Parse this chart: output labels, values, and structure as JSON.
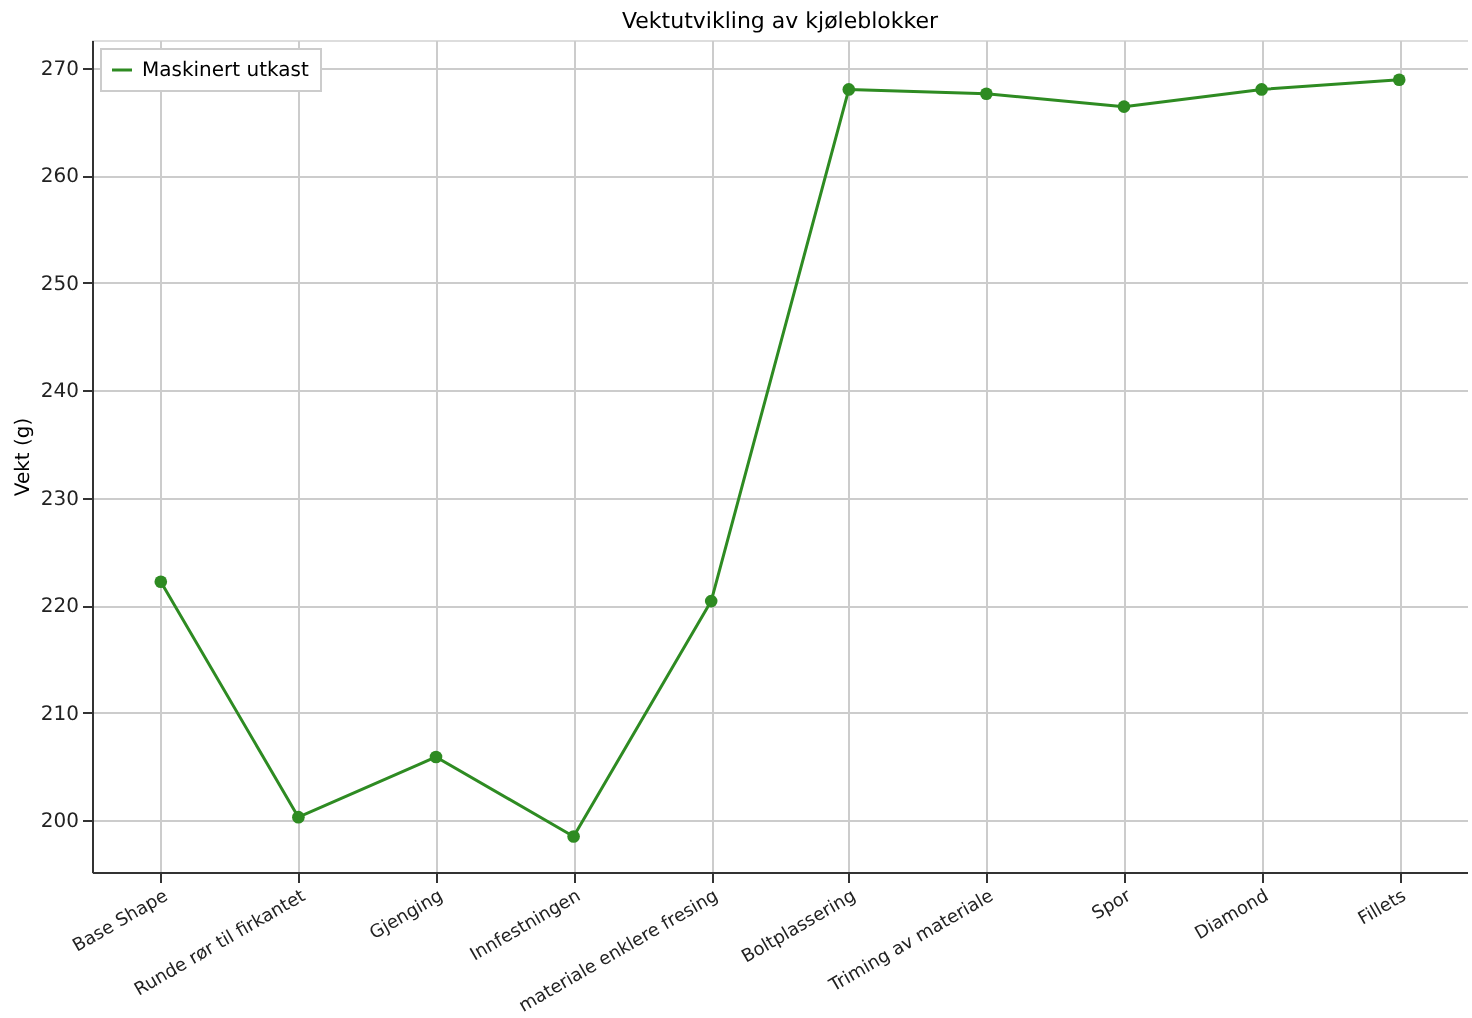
{
  "chart_data": {
    "type": "line",
    "title": "Vektutvikling av kjøleblokker",
    "ylabel": "Vekt (g)",
    "categories": [
      "Base Shape",
      "Runde rør til firkantet",
      "Gjenging",
      "Innfestningen",
      "materiale enklere fresing",
      "Boltplassering",
      "Triming av materiale",
      "Spor",
      "Diamond",
      "Fillets"
    ],
    "series": [
      {
        "name": "Maskinert utkast",
        "color": "#2e8b22",
        "values": [
          222.2,
          200.3,
          205.9,
          198.5,
          220.4,
          268.0,
          267.6,
          266.4,
          268.0,
          268.9
        ]
      }
    ],
    "ylim": [
      195.2,
      272.6
    ],
    "yticks": [
      200,
      210,
      220,
      230,
      240,
      250,
      260,
      270
    ],
    "grid": true,
    "legend": "top left",
    "marker": "circle",
    "line_style": "solid"
  }
}
